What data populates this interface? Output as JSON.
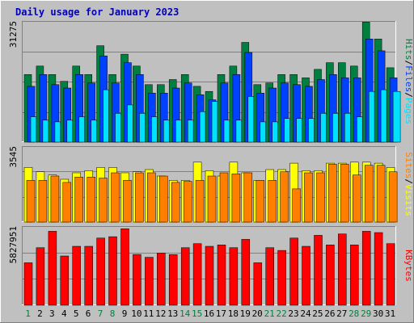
{
  "chart_data": [
    {
      "type": "bar",
      "title": "Daily usage for January 2023",
      "panel": "hits-files-pages",
      "categories": [
        "1",
        "2",
        "3",
        "4",
        "5",
        "6",
        "7",
        "8",
        "9",
        "10",
        "11",
        "12",
        "13",
        "14",
        "15",
        "16",
        "17",
        "18",
        "19",
        "20",
        "21",
        "22",
        "23",
        "24",
        "25",
        "26",
        "27",
        "28",
        "29",
        "30",
        "31"
      ],
      "weekend_days": [
        "1",
        "7",
        "8",
        "14",
        "15",
        "21",
        "22",
        "28",
        "29"
      ],
      "ylabel_max": "31275",
      "ylim": [
        0,
        31275
      ],
      "series": [
        {
          "name": "Hits",
          "color": "#008040",
          "values": [
            17460,
            19650,
            17460,
            15710,
            19650,
            17460,
            24890,
            17460,
            22700,
            19650,
            14840,
            14840,
            16150,
            17460,
            14410,
            13100,
            17460,
            19650,
            25760,
            14840,
            15280,
            17460,
            17460,
            16590,
            18780,
            20520,
            20520,
            19650,
            31000,
            26630,
            19210
          ]
        },
        {
          "name": "Files",
          "color": "#0040ff",
          "values": [
            14410,
            17460,
            14840,
            13970,
            17460,
            15280,
            22260,
            15280,
            20520,
            17460,
            12660,
            12660,
            13970,
            15280,
            12230,
            10920,
            15280,
            17460,
            23140,
            12660,
            13970,
            15280,
            14840,
            14410,
            16150,
            17460,
            16590,
            16590,
            26630,
            23580,
            16590
          ]
        },
        {
          "name": "Pages",
          "color": "#00e0ff",
          "values": [
            6550,
            5680,
            5240,
            5680,
            6550,
            5680,
            13540,
            7420,
            9610,
            7420,
            6550,
            5680,
            5680,
            5680,
            7860,
            10480,
            5680,
            5680,
            11790,
            5240,
            5240,
            6110,
            6110,
            6110,
            7420,
            7420,
            7420,
            6550,
            13100,
            13540,
            13100
          ]
        }
      ],
      "axis_labels": [
        "Hits",
        "Files",
        "Pages"
      ],
      "label_separator": "/",
      "grid": true
    },
    {
      "type": "bar",
      "panel": "visits-sites",
      "categories": [
        "1",
        "2",
        "3",
        "4",
        "5",
        "6",
        "7",
        "8",
        "9",
        "10",
        "11",
        "12",
        "13",
        "14",
        "15",
        "16",
        "17",
        "18",
        "19",
        "20",
        "21",
        "22",
        "23",
        "24",
        "25",
        "26",
        "27",
        "28",
        "29",
        "30",
        "31"
      ],
      "ylabel_max": "3545",
      "ylim": [
        0,
        3545
      ],
      "series": [
        {
          "name": "Visits",
          "color": "#ffff00",
          "values": [
            2550,
            2350,
            2200,
            2000,
            2300,
            2400,
            2550,
            2550,
            2300,
            2350,
            2450,
            2150,
            1950,
            1950,
            2800,
            2400,
            2150,
            2800,
            2300,
            1950,
            2450,
            2450,
            2750,
            2400,
            2400,
            2750,
            2750,
            2800,
            2800,
            2750,
            2550
          ]
        },
        {
          "name": "Sites",
          "color": "#ff8000",
          "values": [
            1950,
            1950,
            2150,
            1850,
            2100,
            2100,
            2050,
            2300,
            1950,
            2300,
            2300,
            2150,
            1850,
            1900,
            1950,
            2150,
            2300,
            2250,
            2300,
            1950,
            1950,
            2350,
            1550,
            2300,
            2300,
            2700,
            2700,
            2200,
            2650,
            2650,
            2350
          ]
        }
      ],
      "axis_labels": [
        "Sites",
        "Visits"
      ],
      "label_separator": "/",
      "grid": true
    },
    {
      "type": "bar",
      "panel": "kbytes",
      "categories": [
        "1",
        "2",
        "3",
        "4",
        "5",
        "6",
        "7",
        "8",
        "9",
        "10",
        "11",
        "12",
        "13",
        "14",
        "15",
        "16",
        "17",
        "18",
        "19",
        "20",
        "21",
        "22",
        "23",
        "24",
        "25",
        "26",
        "27",
        "28",
        "29",
        "30",
        "31"
      ],
      "ylabel_max": "5827951",
      "ylim": [
        0,
        5827951
      ],
      "series": [
        {
          "name": "KBytes",
          "color": "#ff0000",
          "values": [
            3130000,
            4240000,
            5450000,
            3630000,
            4340000,
            4340000,
            4950000,
            5050000,
            5630000,
            3740000,
            3530000,
            3840000,
            3730000,
            4240000,
            4540000,
            4340000,
            4440000,
            4240000,
            4850000,
            3130000,
            4240000,
            4040000,
            4950000,
            4340000,
            5150000,
            4440000,
            5250000,
            4440000,
            5450000,
            5350000,
            4540000
          ]
        }
      ],
      "axis_labels": [
        "KBytes"
      ],
      "grid": true
    }
  ]
}
